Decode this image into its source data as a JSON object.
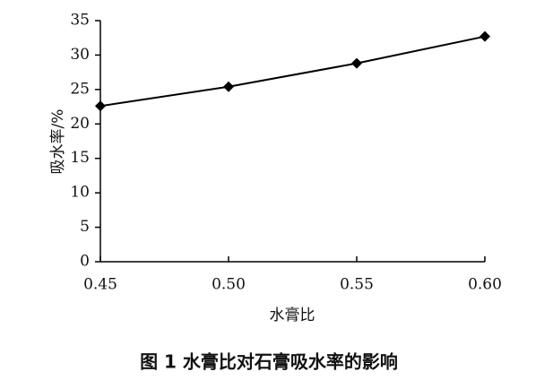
{
  "chart_data": {
    "type": "line",
    "title": "图 1   水膏比对石膏吸水率的影响",
    "x_label": "水膏比",
    "y_label": "吸水率/%",
    "x": [
      0.45,
      0.5,
      0.55,
      0.6
    ],
    "values": [
      22.6,
      25.4,
      28.8,
      32.7
    ],
    "color": "#000000",
    "xlim": [
      0.45,
      0.6
    ],
    "xticks": [
      0.45,
      {
        "value": 0.5,
        "label": "0.50"
      },
      0.55,
      {
        "value": 0.6,
        "label": "0.60"
      }
    ],
    "ylim": [
      0,
      35
    ],
    "yticks": [
      0,
      5,
      10,
      15,
      20,
      25,
      30,
      35
    ]
  }
}
